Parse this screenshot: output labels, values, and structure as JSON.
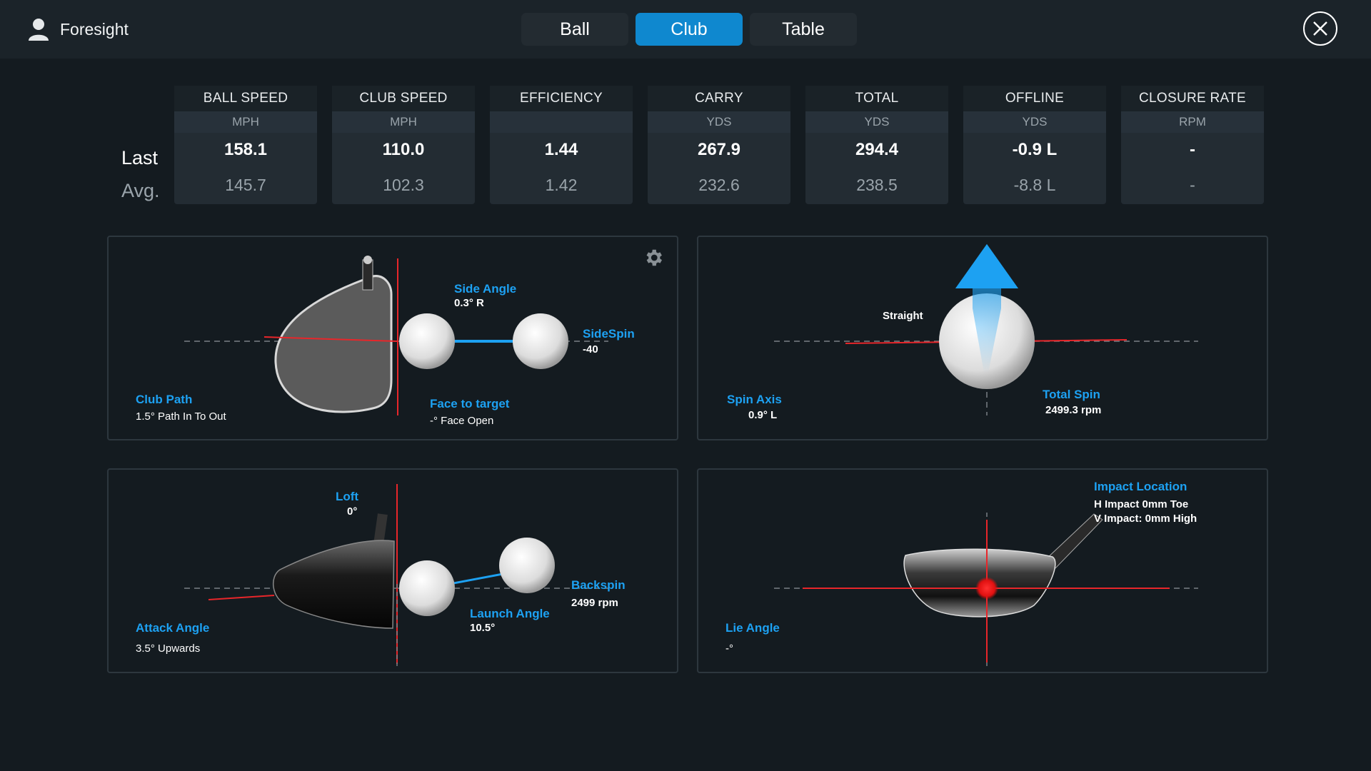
{
  "header": {
    "user_name": "Foresight",
    "tabs": [
      {
        "label": "Ball",
        "active": false
      },
      {
        "label": "Club",
        "active": true
      },
      {
        "label": "Table",
        "active": false
      }
    ]
  },
  "stats": {
    "row_labels": {
      "last": "Last",
      "avg": "Avg."
    },
    "columns": [
      {
        "header": "BALL SPEED",
        "unit": "MPH",
        "last": "158.1",
        "avg": "145.7"
      },
      {
        "header": "CLUB SPEED",
        "unit": "MPH",
        "last": "110.0",
        "avg": "102.3"
      },
      {
        "header": "EFFICIENCY",
        "unit": "",
        "last": "1.44",
        "avg": "1.42"
      },
      {
        "header": "CARRY",
        "unit": "YDS",
        "last": "267.9",
        "avg": "232.6"
      },
      {
        "header": "TOTAL",
        "unit": "YDS",
        "last": "294.4",
        "avg": "238.5"
      },
      {
        "header": "OFFLINE",
        "unit": "YDS",
        "last": "-0.9 L",
        "avg": "-8.8 L"
      },
      {
        "header": "CLOSURE RATE",
        "unit": "RPM",
        "last": "-",
        "avg": "-"
      }
    ]
  },
  "panel_top_down": {
    "side_angle_label": "Side Angle",
    "side_angle_value": "0.3°  R",
    "sidespin_label": "SideSpin",
    "sidespin_value": "-40",
    "club_path_label": "Club Path",
    "club_path_value": "1.5° Path In To Out",
    "face_label": "Face to target",
    "face_value": "-° Face Open"
  },
  "panel_spin": {
    "shape_label": "Straight",
    "spin_axis_label": "Spin Axis",
    "spin_axis_value": "0.9°  L",
    "total_spin_label": "Total Spin",
    "total_spin_value": "2499.3 rpm"
  },
  "panel_side": {
    "loft_label": "Loft",
    "loft_value": "0°",
    "backspin_label": "Backspin",
    "backspin_value": "2499 rpm",
    "launch_label": "Launch Angle",
    "launch_value": "10.5°",
    "attack_label": "Attack Angle",
    "attack_value": "3.5° Upwards"
  },
  "panel_impact": {
    "impact_label": "Impact Location",
    "h_impact": "H Impact 0mm Toe",
    "v_impact": "V Impact: 0mm High",
    "lie_label": "Lie Angle",
    "lie_value": "-°"
  },
  "colors": {
    "accent": "#1da1f2",
    "active_tab": "#0f88cf",
    "target_line": "#e8262a"
  },
  "icons": [
    "user-icon",
    "close-icon",
    "gear-icon"
  ]
}
